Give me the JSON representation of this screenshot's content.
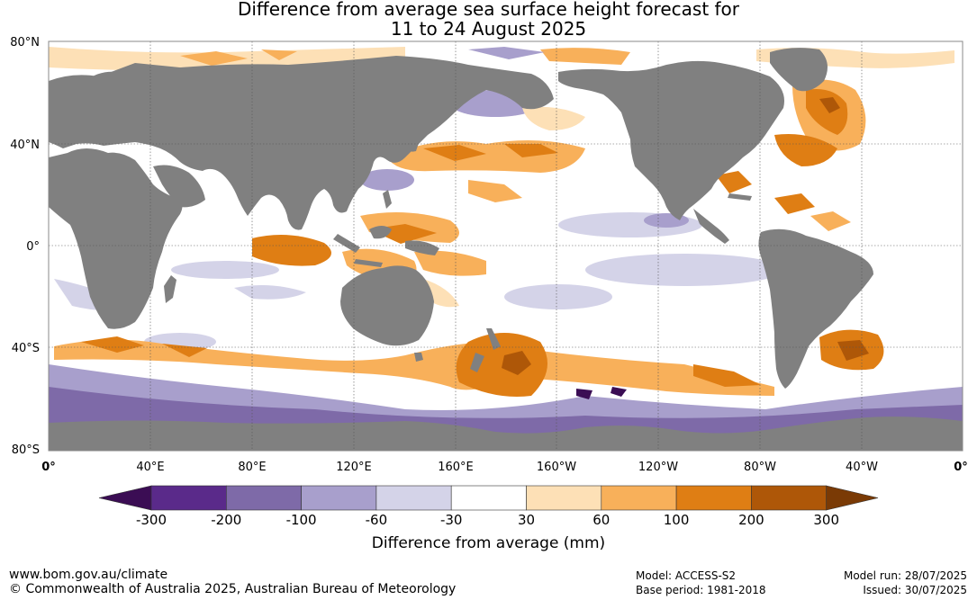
{
  "title": {
    "line1": "Difference from average sea surface height forecast for",
    "line2": "11 to 24 August 2025"
  },
  "map": {
    "lat_labels": [
      "80°N",
      "40°N",
      "0°",
      "40°S",
      "80°S"
    ],
    "lon_labels": [
      "0°",
      "40°E",
      "80°E",
      "120°E",
      "160°E",
      "160°W",
      "120°W",
      "80°W",
      "40°W",
      "0°"
    ],
    "colors": {
      "land": "#808080",
      "ocean_neutral": "#ffffff"
    }
  },
  "colorbar": {
    "ticks": [
      "-300",
      "-200",
      "-100",
      "-60",
      "-30",
      "30",
      "60",
      "100",
      "200",
      "300"
    ],
    "colors": [
      "#3b0d54",
      "#5a2a8a",
      "#7e6aa8",
      "#a89fcc",
      "#d4d3e8",
      "#ffffff",
      "#fde0b6",
      "#f8b05a",
      "#df7e14",
      "#ae5708",
      "#7a3a05"
    ],
    "label": "Difference from average (mm)"
  },
  "footer": {
    "website": "www.bom.gov.au/climate",
    "copyright": "© Commonwealth of Australia 2025, Australian Bureau of Meteorology",
    "model": "Model: ACCESS-S2",
    "base_period": "Base period: 1981-2018",
    "model_run": "Model run: 28/07/2025",
    "issued": "Issued: 30/07/2025"
  }
}
